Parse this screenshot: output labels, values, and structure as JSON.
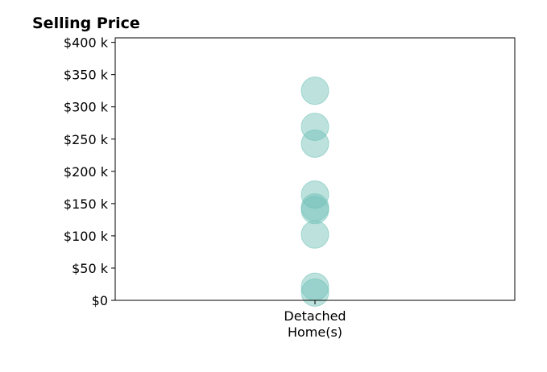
{
  "chart_data": {
    "type": "scatter",
    "title": "Selling Price",
    "xlabel": "",
    "ylabel": "",
    "categories": [
      "Detached Home(s)"
    ],
    "category_label_lines": [
      "Detached",
      "Home(s)"
    ],
    "ylim": [
      0,
      407000
    ],
    "y_ticks": [
      {
        "value": 0,
        "label": "$0"
      },
      {
        "value": 50000,
        "label": "$50 k"
      },
      {
        "value": 100000,
        "label": "$100 k"
      },
      {
        "value": 150000,
        "label": "$150 k"
      },
      {
        "value": 200000,
        "label": "$200 k"
      },
      {
        "value": 250000,
        "label": "$250 k"
      },
      {
        "value": 300000,
        "label": "$300 k"
      },
      {
        "value": 350000,
        "label": "$350 k"
      },
      {
        "value": 400000,
        "label": "$400 k"
      }
    ],
    "grid": false,
    "series": [
      {
        "category": "Detached Home(s)",
        "values": [
          325000,
          269000,
          243000,
          164000,
          144000,
          140000,
          102000,
          21000,
          12000
        ]
      }
    ],
    "marker_color": "#6cbfb5",
    "marker_opacity": 0.45
  }
}
